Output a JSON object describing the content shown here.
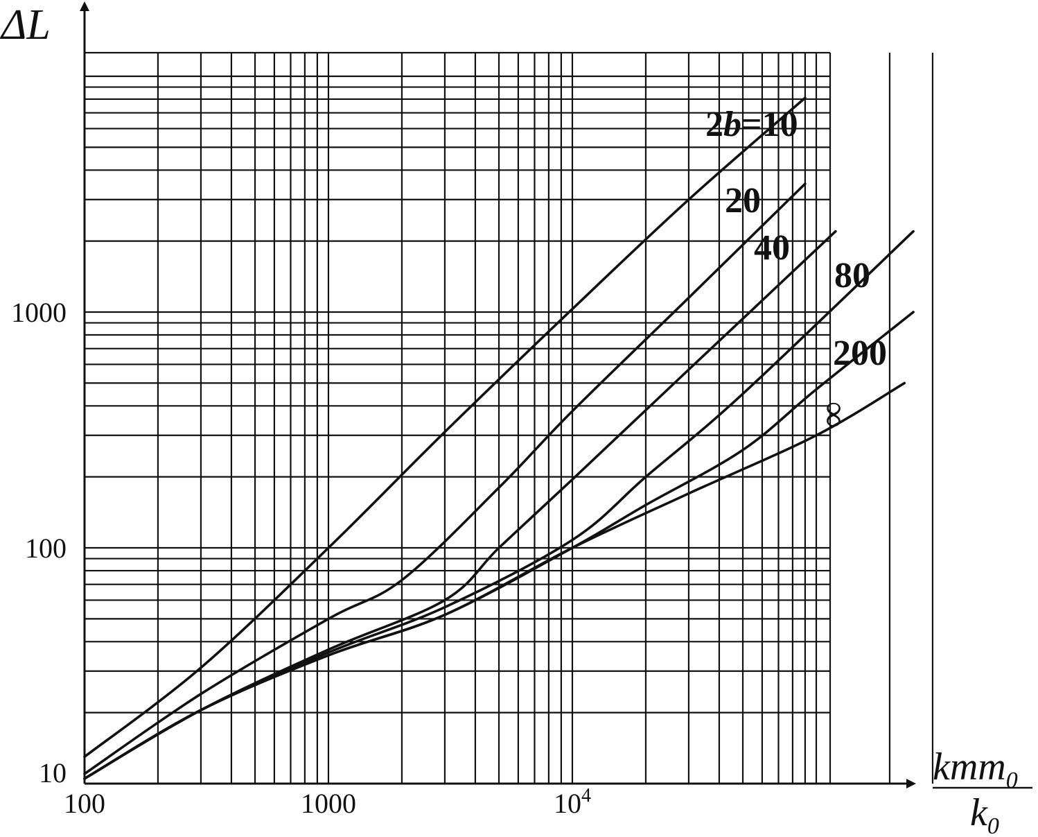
{
  "chart_data": {
    "type": "line",
    "x_scale": "log",
    "y_scale": "log",
    "xlim": [
      100,
      300000
    ],
    "ylim": [
      10,
      12000
    ],
    "grid": true,
    "ylabel": "ΔL",
    "xlabel_numerator": "kmm",
    "xlabel_numerator_sub": "0",
    "xlabel_denominator": "k",
    "xlabel_denominator_sub": "0",
    "x_ticks": [
      {
        "value": 100,
        "label": "100"
      },
      {
        "value": 1000,
        "label": "1000"
      },
      {
        "value": 10000,
        "label": "10",
        "sup": "4"
      }
    ],
    "y_ticks": [
      {
        "value": 10,
        "label": "10"
      },
      {
        "value": 100,
        "label": "100"
      },
      {
        "value": 1000,
        "label": "1000"
      }
    ],
    "series": [
      {
        "name": "2b=10",
        "label_parts": [
          "2",
          "b",
          "=10"
        ],
        "x": [
          100,
          300,
          1000,
          3000,
          10000,
          30000,
          90000
        ],
        "y": [
          13,
          31,
          100,
          310,
          1030,
          3000,
          8100
        ]
      },
      {
        "name": "20",
        "label_parts": [
          "20"
        ],
        "x": [
          100,
          300,
          1000,
          2000,
          5000,
          10000,
          30000,
          90000
        ],
        "y": [
          11,
          24,
          50,
          73,
          180,
          380,
          1150,
          3500
        ]
      },
      {
        "name": "40",
        "label_parts": [
          "40"
        ],
        "x": [
          100,
          300,
          1000,
          3000,
          5000,
          10000,
          30000,
          120000
        ],
        "y": [
          10.5,
          20.5,
          37,
          60,
          100,
          195,
          570,
          2200
        ]
      },
      {
        "name": "80",
        "label_parts": [
          "80"
        ],
        "x": [
          100,
          300,
          1000,
          3000,
          10000,
          20000,
          50000,
          250000
        ],
        "y": [
          10.5,
          20.5,
          36,
          56,
          108,
          200,
          450,
          2200
        ]
      },
      {
        "name": "200",
        "label_parts": [
          "200"
        ],
        "x": [
          100,
          300,
          1000,
          3000,
          10000,
          20000,
          50000,
          100000,
          250000
        ],
        "y": [
          10.5,
          20.5,
          35,
          52,
          100,
          152,
          260,
          470,
          1000
        ]
      },
      {
        "name": "∞",
        "label_parts": [
          "∞"
        ],
        "x": [
          100,
          300,
          1000,
          3000,
          10000,
          30000,
          100000,
          230000
        ],
        "y": [
          10.5,
          20.5,
          35,
          52,
          100,
          170,
          300,
          500
        ]
      }
    ]
  }
}
